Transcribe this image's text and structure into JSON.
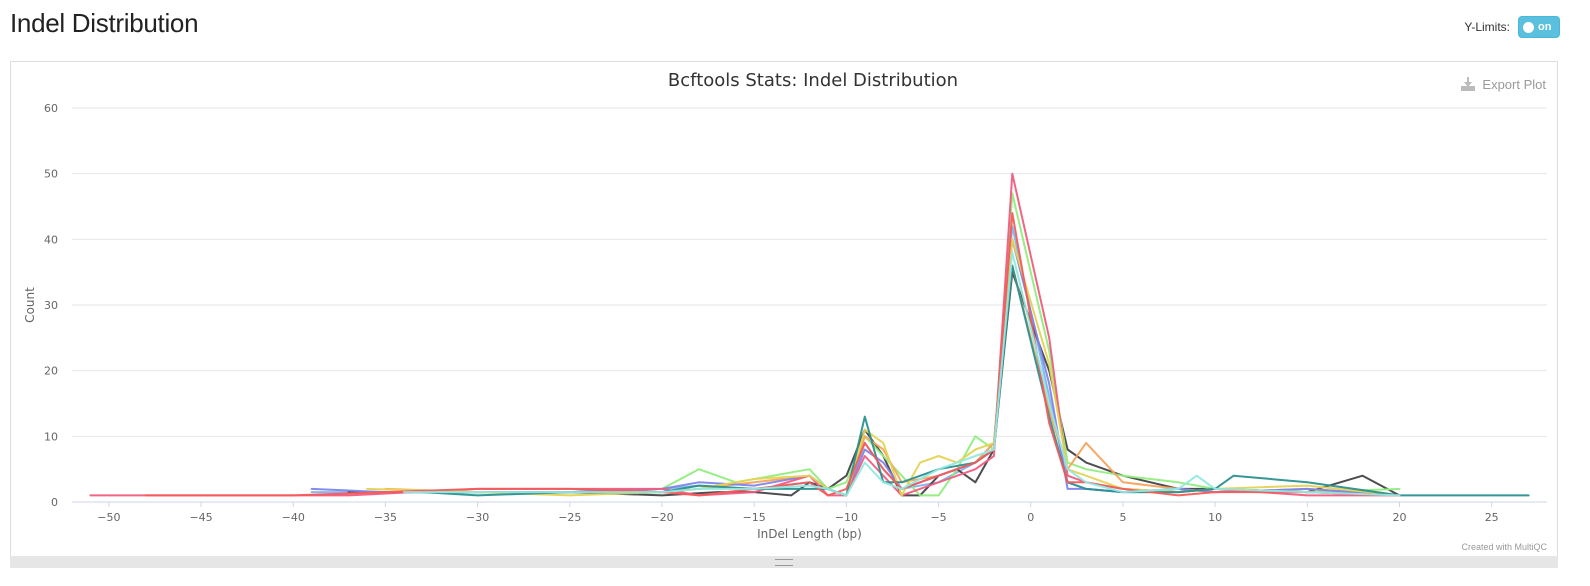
{
  "header": {
    "title": "Indel Distribution",
    "ylimits_label": "Y-Limits:",
    "toggle_label": "on"
  },
  "toolbar": {
    "export_label": "Export Plot"
  },
  "credit": "Created with MultiQC",
  "colors": {
    "accent": "#5bc0de"
  },
  "chart_data": {
    "type": "line",
    "title": "Bcftools Stats: Indel Distribution",
    "xlabel": "InDel Length (bp)",
    "ylabel": "Count",
    "xlim": [
      -52,
      28
    ],
    "ylim": [
      0,
      60
    ],
    "xticks": [
      -50,
      -45,
      -40,
      -35,
      -30,
      -25,
      -20,
      -15,
      -10,
      -5,
      0,
      5,
      10,
      15,
      20,
      25
    ],
    "yticks": [
      0,
      10,
      20,
      30,
      40,
      50,
      60
    ],
    "grid": true,
    "series": [
      {
        "color": "#7cb5ec",
        "x": [
          -39,
          -35,
          -30,
          -25,
          -20,
          -18,
          -15,
          -12,
          -11,
          -10,
          -9,
          -8,
          -7,
          -5,
          -3,
          -2,
          -1,
          1,
          2,
          3,
          5,
          8,
          10,
          15,
          20
        ],
        "y": [
          1.5,
          1.5,
          1.5,
          1.5,
          2,
          2.5,
          2,
          3,
          2,
          1,
          9,
          5,
          2,
          3,
          6,
          9,
          42,
          16,
          3,
          2,
          1.5,
          1.5,
          2,
          1.5,
          1
        ]
      },
      {
        "color": "#434348",
        "x": [
          -37,
          -30,
          -25,
          -20,
          -17,
          -15,
          -13,
          -12,
          -11,
          -10,
          -9,
          -8,
          -7,
          -6,
          -5,
          -4,
          -3,
          -2,
          -1,
          1,
          2,
          3,
          5,
          8,
          10,
          15,
          18,
          20
        ],
        "y": [
          1.5,
          1.5,
          1.5,
          1,
          1.5,
          1.5,
          1,
          3,
          2,
          4,
          11,
          7,
          1,
          1,
          4,
          5,
          3,
          8,
          35,
          20,
          8,
          6,
          4,
          2,
          2,
          1.5,
          4,
          1
        ]
      },
      {
        "color": "#90ed7d",
        "x": [
          -36,
          -30,
          -25,
          -20,
          -18,
          -16,
          -12,
          -11,
          -10,
          -9,
          -8,
          -7,
          -6,
          -5,
          -4,
          -3,
          -2,
          -1,
          1,
          2,
          3,
          5,
          8,
          10,
          15,
          20
        ],
        "y": [
          1.5,
          1.5,
          1.5,
          2,
          5,
          3,
          5,
          2,
          3,
          10,
          7,
          4,
          1,
          1,
          5,
          10,
          8,
          47,
          23,
          6,
          5,
          4,
          3,
          2,
          1.5,
          2
        ]
      },
      {
        "color": "#f7a35c",
        "x": [
          -35,
          -30,
          -25,
          -20,
          -18,
          -15,
          -12,
          -11,
          -10,
          -9,
          -8,
          -7,
          -5,
          -3,
          -2,
          -1,
          1,
          2,
          3,
          5,
          8,
          10,
          15,
          20
        ],
        "y": [
          2,
          1.5,
          1.5,
          1.5,
          2,
          3,
          4,
          2,
          1,
          10,
          8,
          3,
          4,
          6,
          9,
          36,
          14,
          5,
          9,
          3,
          2,
          1.5,
          2,
          1
        ]
      },
      {
        "color": "#8085e9",
        "x": [
          -39,
          -35,
          -30,
          -25,
          -20,
          -18,
          -15,
          -12,
          -11,
          -10,
          -9,
          -8,
          -7,
          -5,
          -3,
          -2,
          -1,
          1,
          2,
          3,
          5,
          8,
          10,
          15,
          20
        ],
        "y": [
          2,
          1.5,
          1.5,
          1.5,
          2,
          3,
          2.5,
          4,
          2,
          1,
          8,
          6,
          2,
          4,
          6,
          8,
          40,
          18,
          2,
          2,
          1.5,
          2,
          1.5,
          2,
          1
        ]
      },
      {
        "color": "#f15c80",
        "x": [
          -51,
          -45,
          -40,
          -37,
          -30,
          -25,
          -20,
          -18,
          -15,
          -12,
          -11,
          -10,
          -9,
          -8,
          -7,
          -5,
          -3,
          -2,
          -1,
          1,
          2,
          3,
          5,
          8,
          10,
          15,
          20
        ],
        "y": [
          1,
          1,
          1,
          1,
          2,
          2,
          2,
          1,
          1.5,
          4,
          1,
          1,
          7,
          4,
          1,
          3,
          5,
          7,
          50,
          25,
          4,
          3,
          2,
          1.5,
          2,
          1,
          1
        ]
      },
      {
        "color": "#e4d354",
        "x": [
          -36,
          -30,
          -25,
          -20,
          -18,
          -15,
          -12,
          -11,
          -10,
          -9,
          -8,
          -7,
          -6,
          -5,
          -4,
          -3,
          -2,
          -1,
          1,
          2,
          3,
          5,
          8,
          10,
          15,
          20
        ],
        "y": [
          2,
          1.5,
          1,
          1.5,
          2,
          3.5,
          4,
          2,
          1,
          11,
          9,
          1,
          6,
          7,
          6,
          8,
          9,
          40,
          21,
          5,
          4,
          2,
          1.5,
          2,
          2.5,
          1
        ]
      },
      {
        "color": "#2b908f",
        "x": [
          -33,
          -30,
          -25,
          -20,
          -18,
          -15,
          -12,
          -11,
          -10,
          -9,
          -8,
          -7,
          -5,
          -3,
          -2,
          -1,
          1,
          2,
          3,
          5,
          8,
          10,
          11,
          15,
          20,
          27
        ],
        "y": [
          1.5,
          1,
          1.5,
          1.5,
          2.5,
          2,
          2,
          2,
          1,
          13,
          3,
          3,
          5,
          6,
          8,
          36,
          13,
          3,
          2,
          1.5,
          1.5,
          2,
          4,
          3,
          1,
          1
        ]
      },
      {
        "color": "#f45b5b",
        "x": [
          -48,
          -40,
          -35,
          -30,
          -25,
          -20,
          -18,
          -15,
          -12,
          -11,
          -10,
          -9,
          -8,
          -7,
          -5,
          -3,
          -2,
          -1,
          1,
          2,
          3,
          5,
          8,
          10,
          15,
          20
        ],
        "y": [
          1,
          1,
          1.5,
          2,
          2,
          1.5,
          1,
          2,
          3,
          1,
          2,
          9,
          5,
          2,
          4,
          6,
          8,
          44,
          12,
          3,
          3,
          2,
          1,
          1.5,
          1.5,
          1
        ]
      },
      {
        "color": "#91e8e1",
        "x": [
          -34,
          -30,
          -25,
          -20,
          -18,
          -15,
          -12,
          -11,
          -10,
          -9,
          -8,
          -7,
          -5,
          -3,
          -2,
          -1,
          1,
          2,
          3,
          5,
          8,
          9,
          10,
          15,
          20
        ],
        "y": [
          1.5,
          1.5,
          1.5,
          1.5,
          2,
          2,
          2.5,
          2,
          1,
          6,
          3,
          2,
          5,
          7,
          8,
          38,
          15,
          5,
          3,
          1.5,
          2,
          4,
          2,
          1.5,
          1
        ]
      }
    ]
  }
}
